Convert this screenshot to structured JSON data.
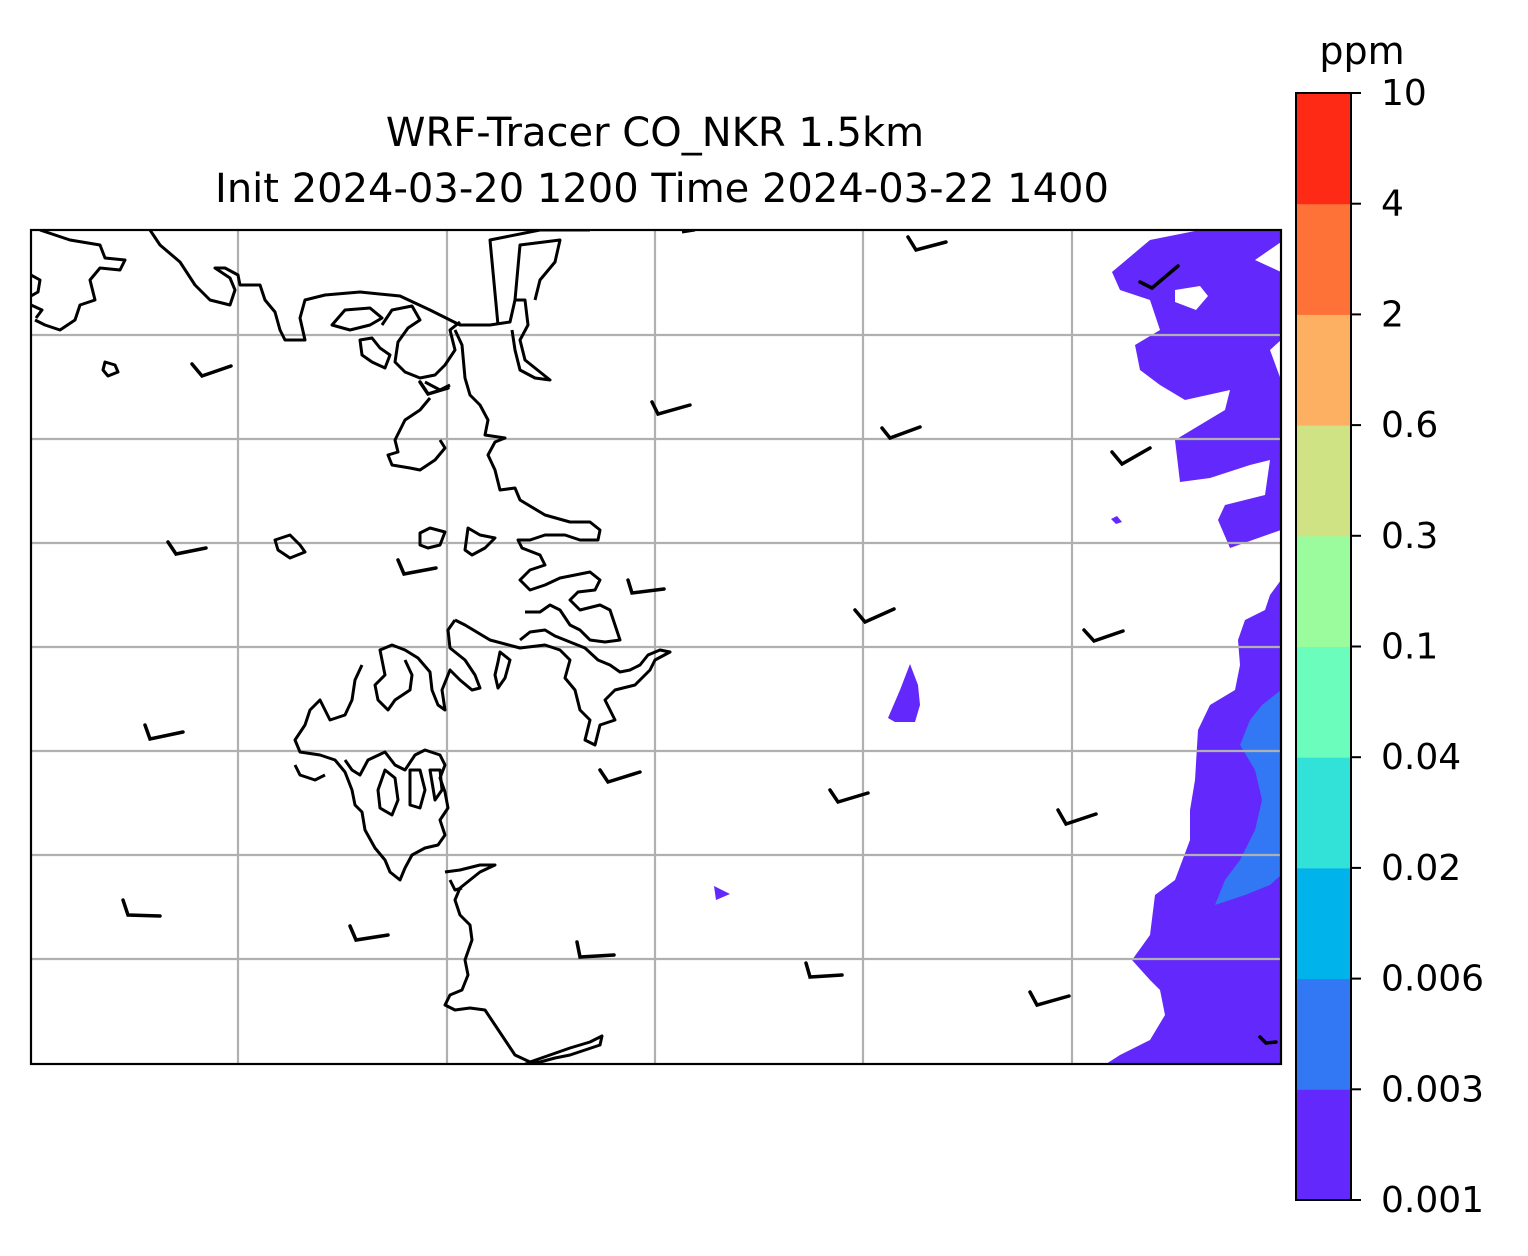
{
  "title": {
    "line1": "WRF-Tracer CO_NKR 1.5km",
    "line2": "Init 2024-03-20 1200 Time 2024-03-22 1400"
  },
  "colorbar": {
    "unit": "ppm",
    "levels": [
      "0.001",
      "0.003",
      "0.006",
      "0.02",
      "0.04",
      "0.1",
      "0.3",
      "0.6",
      "2",
      "4",
      "10"
    ],
    "colors": [
      "#6328fb",
      "#3277f4",
      "#00b4eb",
      "#32e1d8",
      "#6afdbc",
      "#9afc9c",
      "#cfe385",
      "#feb062",
      "#fe7137",
      "#fe2a15"
    ]
  },
  "map": {
    "gridlines": true,
    "land_outline_color": "#000000",
    "gridline_color": "#b0b0b0",
    "plume_color": "#6328fb",
    "plume_inner_color": "#3277f4",
    "wind_barbs": true
  }
}
